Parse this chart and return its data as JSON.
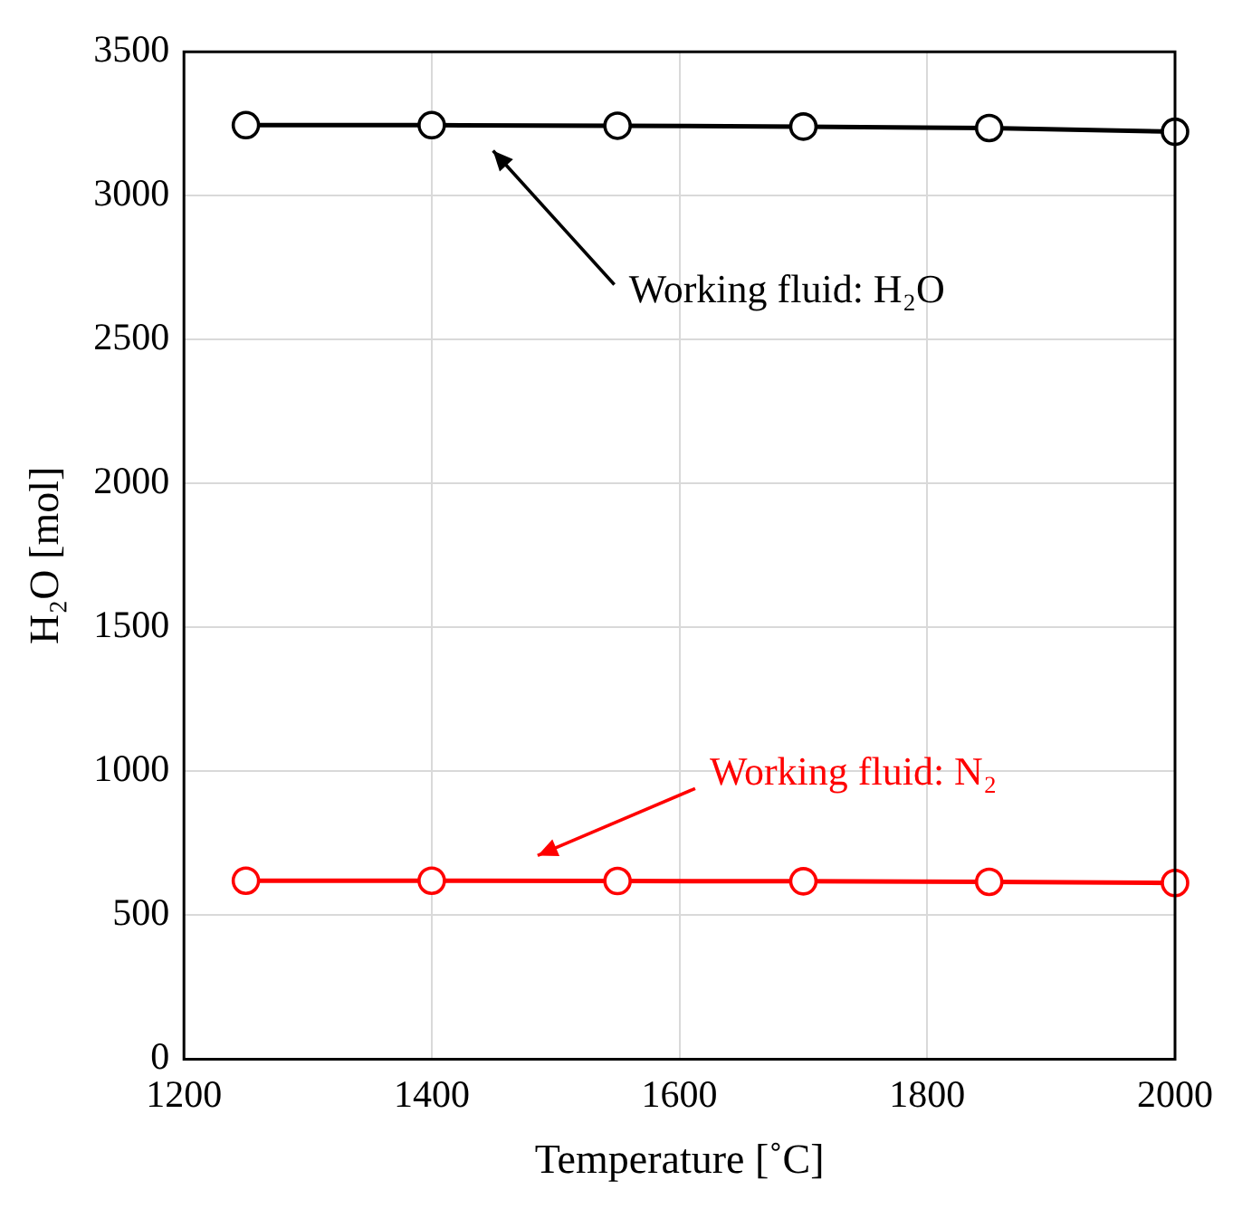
{
  "chart_data": {
    "type": "line",
    "xlabel": "Temperature [˚C]",
    "ylabel": "H₂O [mol]",
    "x": [
      1250,
      1400,
      1550,
      1700,
      1850,
      2000
    ],
    "series": [
      {
        "color": "#000000",
        "values": [
          3245,
          3245,
          3243,
          3240,
          3235,
          3222
        ]
      },
      {
        "color": "#ff0000",
        "values": [
          620,
          620,
          619,
          618,
          616,
          612
        ]
      }
    ],
    "xlim": [
      1200,
      2000
    ],
    "xticks": [
      1200,
      1400,
      1600,
      1800,
      2000
    ],
    "ylim": [
      0,
      3500
    ],
    "yticks": [
      0,
      500,
      1000,
      1500,
      2000,
      2500,
      3000,
      3500
    ],
    "grid": true,
    "marker": "circle",
    "line_style": "solid",
    "legend": false,
    "annotations": [
      "Working fluid: H₂O",
      "Working fluid: N₂"
    ]
  }
}
